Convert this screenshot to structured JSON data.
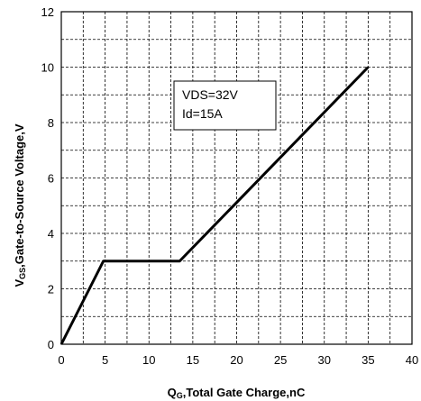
{
  "chart_data": {
    "type": "line",
    "xlim": [
      0,
      40
    ],
    "ylim": [
      0,
      12
    ],
    "x_ticks": [
      0,
      5,
      10,
      15,
      20,
      25,
      30,
      35,
      40
    ],
    "y_ticks": [
      0,
      2,
      4,
      6,
      8,
      10,
      12
    ],
    "grid": true,
    "xlabel": {
      "main": "Q",
      "sub": "G",
      "rest": ",Total Gate Charge,nC"
    },
    "ylabel": {
      "main": "V",
      "sub": "GS",
      "rest": ",Gate-to-Source Voltage,V"
    },
    "annotation": [
      "VDS=32V",
      "Id=15A"
    ],
    "series": [
      {
        "x": [
          0,
          4.8,
          13.5,
          35
        ],
        "y": [
          0,
          3.0,
          3.0,
          10.0
        ]
      }
    ],
    "line_color": "#000000"
  }
}
